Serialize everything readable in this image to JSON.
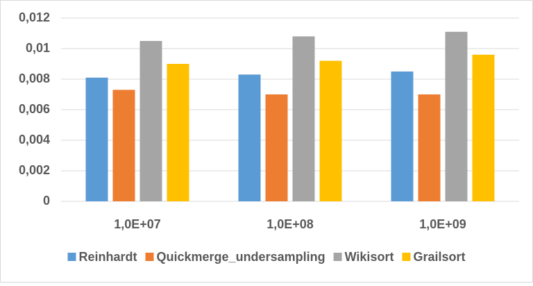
{
  "chart_data": {
    "type": "bar",
    "categories": [
      "1,0E+07",
      "1,0E+08",
      "1,0E+09"
    ],
    "series": [
      {
        "name": "Reinhardt",
        "color": "#5b9bd5",
        "values": [
          0.0081,
          0.0083,
          0.0085
        ]
      },
      {
        "name": "Quickmerge_undersampling",
        "color": "#ed7d31",
        "values": [
          0.0073,
          0.007,
          0.007
        ]
      },
      {
        "name": "Wikisort",
        "color": "#a5a5a5",
        "values": [
          0.0105,
          0.0108,
          0.0111
        ]
      },
      {
        "name": "Grailsort",
        "color": "#ffc000",
        "values": [
          0.009,
          0.0092,
          0.0096
        ]
      }
    ],
    "ylim": [
      0,
      0.012
    ],
    "yticks": [
      0,
      {
        "value": 0.002,
        "label": "0,002"
      },
      {
        "value": 0.004,
        "label": "0,004"
      },
      {
        "value": 0.006,
        "label": "0,006"
      },
      {
        "value": 0.008,
        "label": "0,008"
      },
      {
        "value": 0.01,
        "label": "0,01"
      },
      {
        "value": 0.012,
        "label": "0,012"
      }
    ],
    "grid": true,
    "legend": "bottom"
  }
}
